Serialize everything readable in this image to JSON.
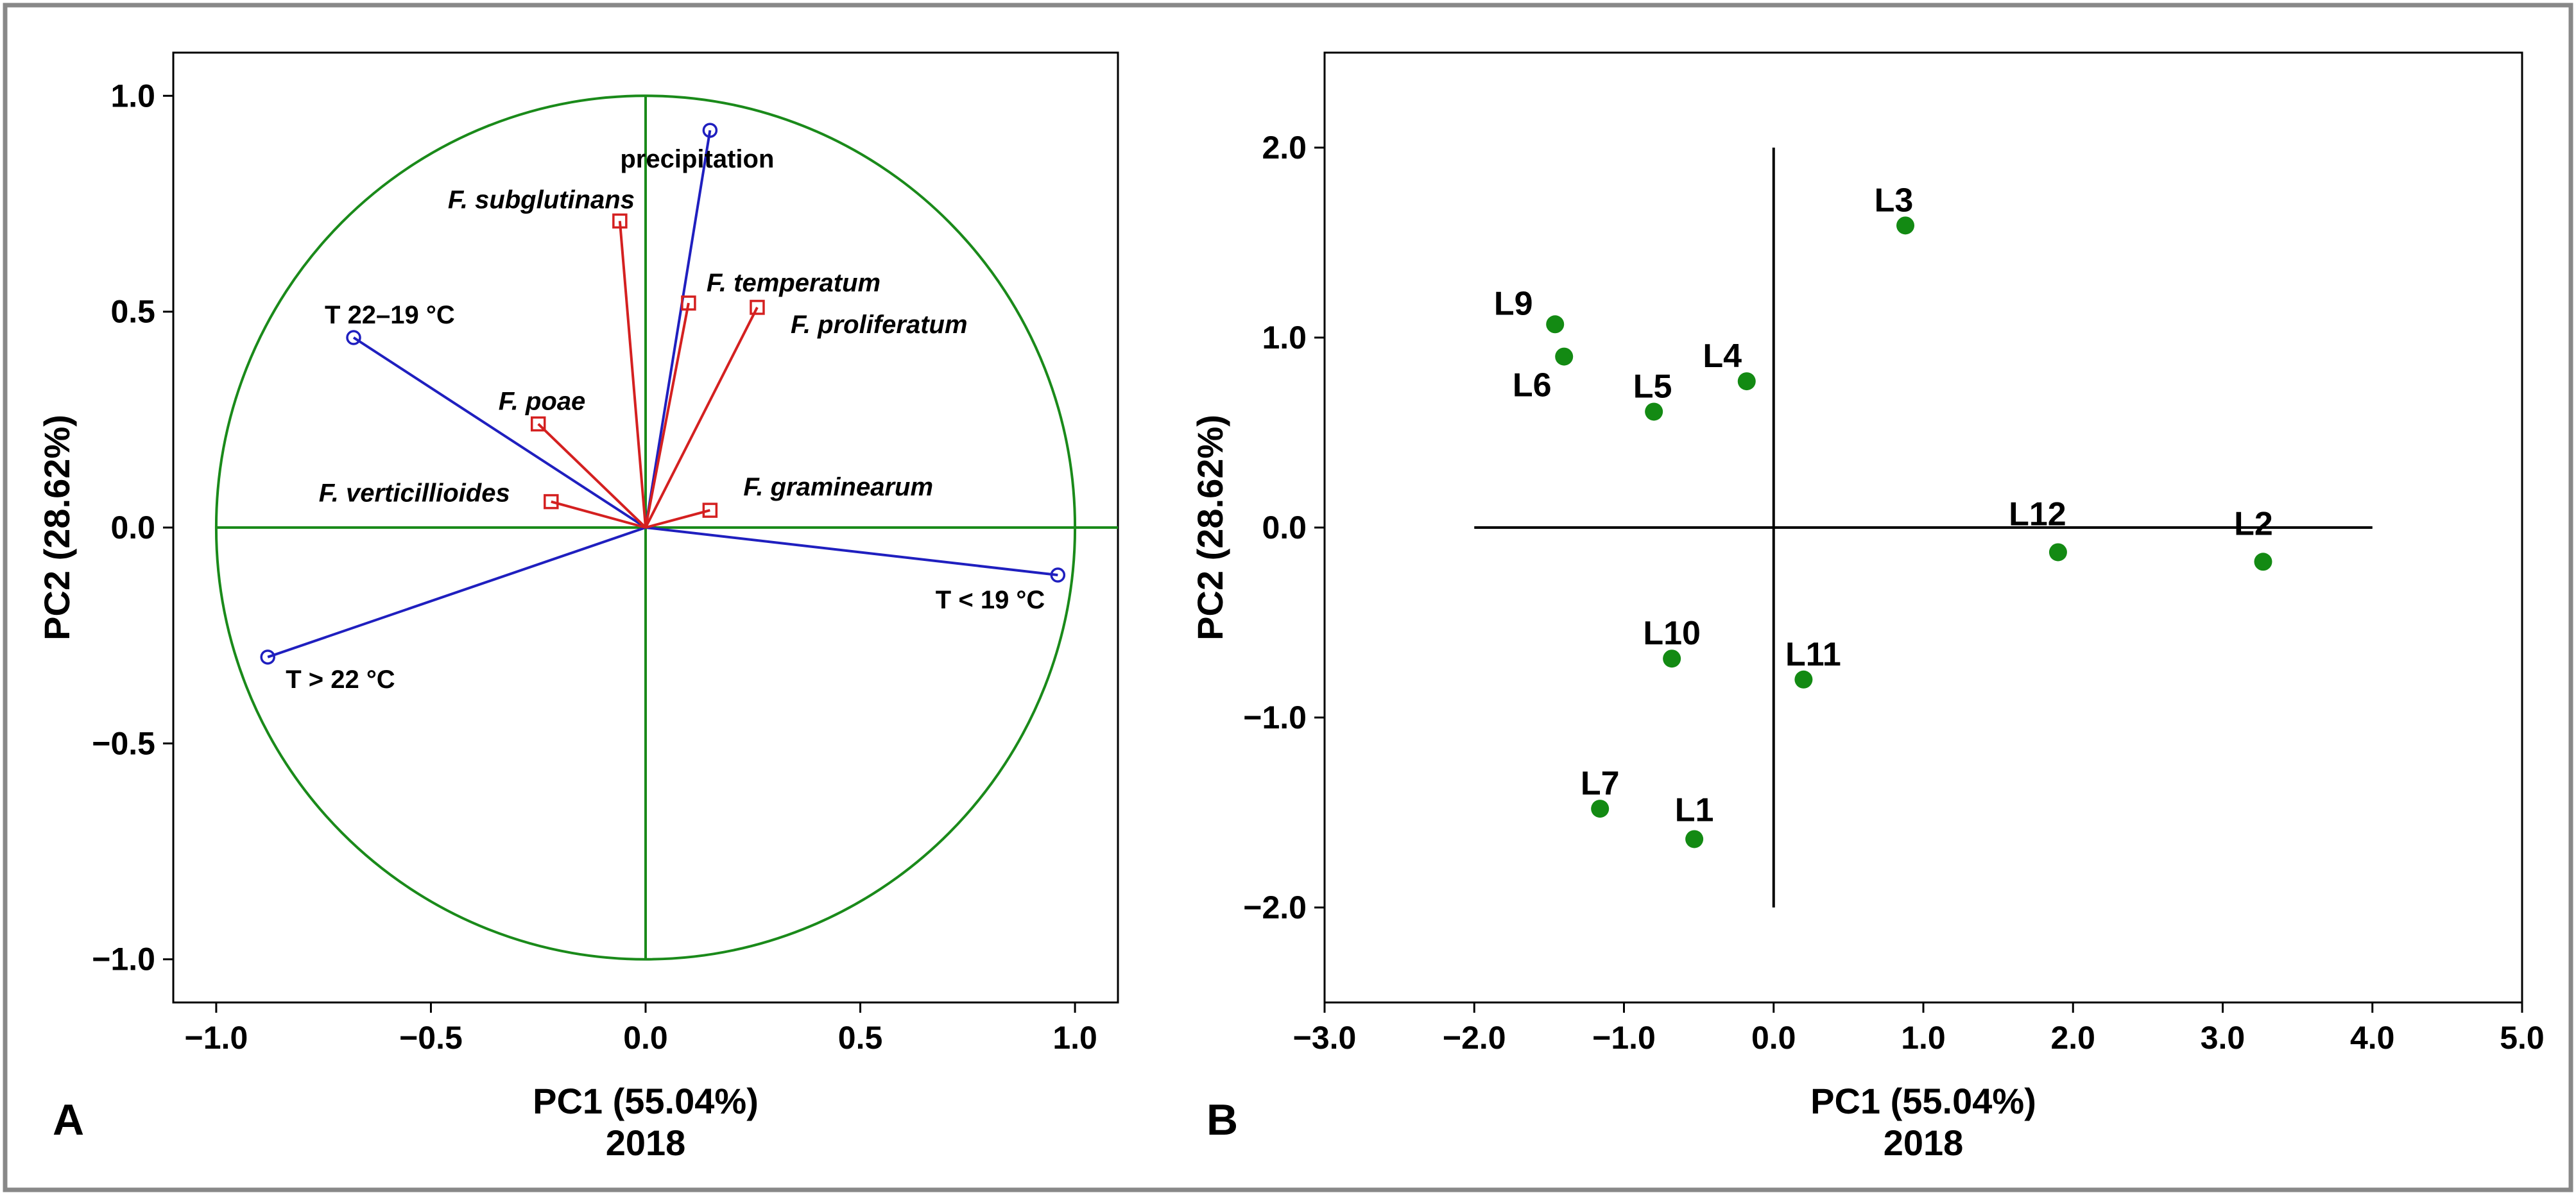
{
  "colors": {
    "frame": "#888888",
    "circle": "#1a8a1a",
    "variable_vector": "#1f1fbf",
    "species_vector": "#d42020",
    "point": "#138a13",
    "axis_line": "#000000"
  },
  "chart_data": [
    {
      "panel": "A",
      "type": "scatter",
      "subtype": "pca-loadings",
      "xlabel": "PC1 (55.04%)",
      "ylabel": "PC2 (28.62%)",
      "subtitle": "2018",
      "xlim": [
        -1.1,
        1.1
      ],
      "ylim": [
        -1.1,
        1.1
      ],
      "xticks": [
        -1.0,
        -0.5,
        0.0,
        0.5,
        1.0
      ],
      "yticks": [
        -1.0,
        -0.5,
        0.0,
        0.5,
        1.0
      ],
      "xtick_labels": [
        "−1.0",
        "−0.5",
        "0.0",
        "0.5",
        "1.0"
      ],
      "ytick_labels": [
        "−1.0",
        "−0.5",
        "0.0",
        "0.5",
        "1.0"
      ],
      "unit_circle": true,
      "variables": [
        {
          "name": "precipitation",
          "x": 0.15,
          "y": 0.92,
          "group": "climate",
          "italic": false
        },
        {
          "name": "T 22–19 °C",
          "x": -0.68,
          "y": 0.44,
          "group": "climate",
          "italic": false
        },
        {
          "name": "T < 19 °C",
          "x": 0.96,
          "y": -0.11,
          "group": "climate",
          "italic": false
        },
        {
          "name": "T > 22 °C",
          "x": -0.88,
          "y": -0.3,
          "group": "climate",
          "italic": false
        },
        {
          "name": "F. subglutinans",
          "x": -0.06,
          "y": 0.71,
          "group": "species",
          "italic": true
        },
        {
          "name": "F. temperatum",
          "x": 0.1,
          "y": 0.52,
          "group": "species",
          "italic": true
        },
        {
          "name": "F. proliferatum",
          "x": 0.26,
          "y": 0.51,
          "group": "species",
          "italic": true
        },
        {
          "name": "F. poae",
          "x": -0.25,
          "y": 0.24,
          "group": "species",
          "italic": true
        },
        {
          "name": "F. verticillioides",
          "x": -0.22,
          "y": 0.06,
          "group": "species",
          "italic": true
        },
        {
          "name": "F. graminearum",
          "x": 0.15,
          "y": 0.04,
          "group": "species",
          "italic": true
        }
      ]
    },
    {
      "panel": "B",
      "type": "scatter",
      "subtype": "pca-scores",
      "xlabel": "PC1 (55.04%)",
      "ylabel": "PC2 (28.62%)",
      "subtitle": "2018",
      "xlim": [
        -3.0,
        5.0
      ],
      "ylim": [
        -2.5,
        2.5
      ],
      "xticks": [
        -3.0,
        -2.0,
        -1.0,
        0.0,
        1.0,
        2.0,
        3.0,
        4.0,
        5.0
      ],
      "yticks": [
        -2.0,
        -1.0,
        0.0,
        1.0,
        2.0
      ],
      "xtick_labels": [
        "−3.0",
        "−2.0",
        "−1.0",
        "0.0",
        "1.0",
        "2.0",
        "3.0",
        "4.0",
        "5.0"
      ],
      "ytick_labels": [
        "−2.0",
        "−1.0",
        "0.0",
        "1.0",
        "2.0"
      ],
      "cross_lines": {
        "h_from": -2.0,
        "h_to": 4.0,
        "v_from": -2.0,
        "v_to": 2.0
      },
      "points": [
        {
          "name": "L1",
          "x": -0.53,
          "y": -1.64
        },
        {
          "name": "L2",
          "x": 3.27,
          "y": -0.18
        },
        {
          "name": "L3",
          "x": 0.88,
          "y": 1.59
        },
        {
          "name": "L4",
          "x": -0.18,
          "y": 0.77
        },
        {
          "name": "L5",
          "x": -0.8,
          "y": 0.61
        },
        {
          "name": "L6",
          "x": -1.4,
          "y": 0.9
        },
        {
          "name": "L7",
          "x": -1.16,
          "y": -1.48
        },
        {
          "name": "L9",
          "x": -1.46,
          "y": 1.07
        },
        {
          "name": "L10",
          "x": -0.68,
          "y": -0.69
        },
        {
          "name": "L11",
          "x": 0.2,
          "y": -0.8
        },
        {
          "name": "L12",
          "x": 1.9,
          "y": -0.13
        }
      ]
    }
  ]
}
